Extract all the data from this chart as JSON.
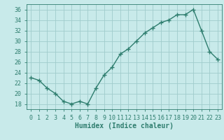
{
  "x": [
    0,
    1,
    2,
    3,
    4,
    5,
    6,
    7,
    8,
    9,
    10,
    11,
    12,
    13,
    14,
    15,
    16,
    17,
    18,
    19,
    20,
    21,
    22,
    23
  ],
  "y": [
    23,
    22.5,
    21,
    20,
    18.5,
    18,
    18.5,
    18,
    21,
    23.5,
    25,
    27.5,
    28.5,
    30,
    31.5,
    32.5,
    33.5,
    34,
    35,
    35,
    36,
    32,
    28,
    26.5
  ],
  "line_color": "#2e7d6e",
  "marker": "+",
  "bg_color": "#c8eaea",
  "grid_color": "#a0cccc",
  "xlabel": "Humidex (Indice chaleur)",
  "ylim": [
    17,
    37
  ],
  "xlim": [
    -0.5,
    23.5
  ],
  "yticks": [
    18,
    20,
    22,
    24,
    26,
    28,
    30,
    32,
    34,
    36
  ],
  "xticks": [
    0,
    1,
    2,
    3,
    4,
    5,
    6,
    7,
    8,
    9,
    10,
    11,
    12,
    13,
    14,
    15,
    16,
    17,
    18,
    19,
    20,
    21,
    22,
    23
  ],
  "tick_color": "#2e7d6e",
  "label_fontsize": 7,
  "tick_fontsize": 6
}
